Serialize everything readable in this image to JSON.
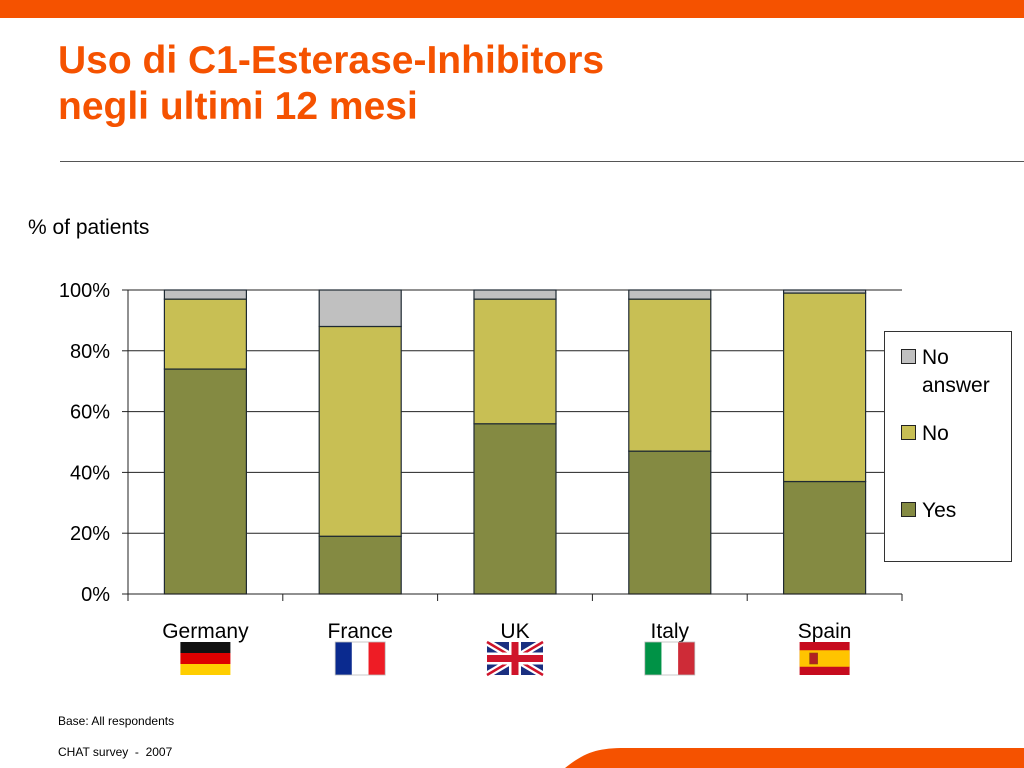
{
  "title_line1": "Uso di C1-Esterase-Inhibitors",
  "title_line2": "negli ultimi 12 mesi",
  "base_note": "Base: All respondents",
  "source_note": "CHAT survey  -  2007",
  "colors": {
    "accent": "#f55200",
    "yes": "#848a42",
    "no": "#c8bf54",
    "no_answer": "#c0c0c0",
    "bar_stroke": "#1f2a33"
  },
  "chart_data": {
    "type": "bar",
    "stacked": true,
    "ylabel": "% of patients",
    "xlabel": "",
    "ylim": [
      0,
      100
    ],
    "yticks": [
      "0%",
      "20%",
      "40%",
      "60%",
      "80%",
      "100%"
    ],
    "categories": [
      "Germany",
      "France",
      "UK",
      "Italy",
      "Spain"
    ],
    "flags": [
      "germany-flag",
      "france-flag",
      "uk-flag",
      "italy-flag",
      "spain-flag"
    ],
    "series": [
      {
        "name": "Yes",
        "values": [
          74,
          19,
          56,
          47,
          37
        ]
      },
      {
        "name": "No",
        "values": [
          23,
          69,
          41,
          50,
          62
        ]
      },
      {
        "name": "No answer",
        "values": [
          3,
          12,
          3,
          3,
          1
        ]
      }
    ],
    "legend_order": [
      "No answer",
      "No",
      "Yes"
    ],
    "legend_position": "right",
    "grid": true
  }
}
